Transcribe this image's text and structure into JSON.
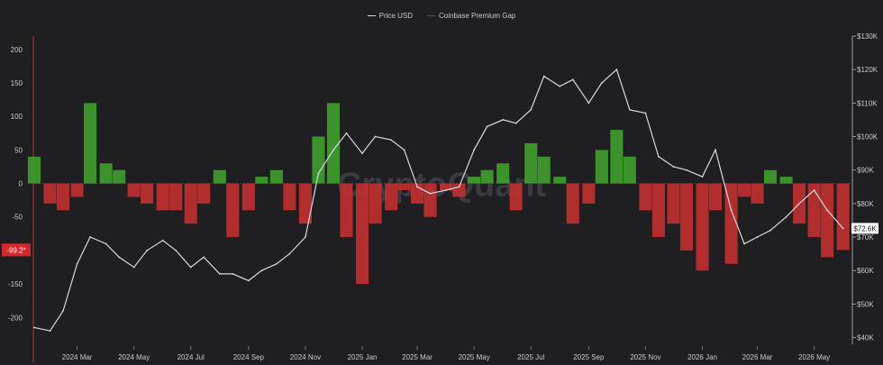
{
  "chart_data": {
    "type": "line",
    "title": "",
    "watermark": "CryptoQuant",
    "legend_position": "top-center",
    "series": [
      {
        "name": "Price USD",
        "axis": "right",
        "color": "#d9d9de",
        "x": [
          "2024-01-15",
          "2024-02-01",
          "2024-02-15",
          "2024-03-01",
          "2024-03-15",
          "2024-04-01",
          "2024-04-15",
          "2024-05-01",
          "2024-05-15",
          "2024-06-01",
          "2024-06-15",
          "2024-07-01",
          "2024-07-15",
          "2024-08-01",
          "2024-08-15",
          "2024-09-01",
          "2024-09-15",
          "2024-10-01",
          "2024-10-15",
          "2024-11-01",
          "2024-11-15",
          "2024-12-01",
          "2024-12-15",
          "2025-01-01",
          "2025-01-15",
          "2025-02-01",
          "2025-02-15",
          "2025-03-01",
          "2025-03-15",
          "2025-04-01",
          "2025-04-15",
          "2025-05-01",
          "2025-05-15",
          "2025-06-01",
          "2025-06-15",
          "2025-07-01",
          "2025-07-15",
          "2025-08-01",
          "2025-08-15",
          "2025-09-01",
          "2025-09-15",
          "2025-10-01",
          "2025-10-15",
          "2025-11-01",
          "2025-11-15",
          "2025-12-01",
          "2025-12-15",
          "2026-01-01",
          "2026-01-15",
          "2026-02-01",
          "2026-02-15",
          "2026-03-01",
          "2026-03-15",
          "2026-04-01",
          "2026-04-15",
          "2026-05-01",
          "2026-05-15",
          "2026-06-01"
        ],
        "values": [
          43000,
          42000,
          48000,
          62000,
          70000,
          68000,
          64000,
          61000,
          66000,
          69000,
          66000,
          61000,
          64000,
          59000,
          59000,
          57000,
          60000,
          62000,
          65000,
          70000,
          89000,
          96000,
          101000,
          95000,
          100000,
          99000,
          96000,
          85000,
          83000,
          84000,
          85000,
          96000,
          103000,
          105000,
          104000,
          108000,
          118000,
          115000,
          117000,
          110000,
          116000,
          120000,
          108000,
          107000,
          94000,
          91000,
          90000,
          88000,
          96000,
          78000,
          68000,
          70000,
          72000,
          76000,
          80000,
          84000,
          78000,
          72600
        ]
      },
      {
        "name": "Coinbase Premium Gap",
        "axis": "left",
        "color_positive": "#3f9e2c",
        "color_negative": "#c23030",
        "x": [
          "2024-01-15",
          "2024-02-01",
          "2024-02-15",
          "2024-03-01",
          "2024-03-15",
          "2024-04-01",
          "2024-04-15",
          "2024-05-01",
          "2024-05-15",
          "2024-06-01",
          "2024-06-15",
          "2024-07-01",
          "2024-07-15",
          "2024-08-01",
          "2024-08-15",
          "2024-09-01",
          "2024-09-15",
          "2024-10-01",
          "2024-10-15",
          "2024-11-01",
          "2024-11-15",
          "2024-12-01",
          "2024-12-15",
          "2025-01-01",
          "2025-01-15",
          "2025-02-01",
          "2025-02-15",
          "2025-03-01",
          "2025-03-15",
          "2025-04-01",
          "2025-04-15",
          "2025-05-01",
          "2025-05-15",
          "2025-06-01",
          "2025-06-15",
          "2025-07-01",
          "2025-07-15",
          "2025-08-01",
          "2025-08-15",
          "2025-09-01",
          "2025-09-15",
          "2025-10-01",
          "2025-10-15",
          "2025-11-01",
          "2025-11-15",
          "2025-12-01",
          "2025-12-15",
          "2026-01-01",
          "2026-01-15",
          "2026-02-01",
          "2026-02-15",
          "2026-03-01",
          "2026-03-15",
          "2026-04-01",
          "2026-04-15",
          "2026-05-01",
          "2026-05-15",
          "2026-06-01"
        ],
        "values": [
          40,
          -30,
          -40,
          -20,
          120,
          30,
          20,
          -20,
          -30,
          -40,
          -40,
          -60,
          -30,
          20,
          -80,
          -40,
          10,
          20,
          -40,
          -60,
          70,
          120,
          -80,
          -150,
          -60,
          -40,
          -10,
          -30,
          -50,
          -10,
          -20,
          10,
          20,
          30,
          -40,
          60,
          40,
          10,
          -60,
          -30,
          50,
          80,
          40,
          -40,
          -80,
          -60,
          -100,
          -130,
          -40,
          -120,
          -20,
          -30,
          20,
          10,
          -60,
          -80,
          -110,
          -99.2
        ]
      }
    ],
    "ylim_left": [
      -240,
      220
    ],
    "yticks_left": [
      -200,
      -150,
      -100,
      -50,
      0,
      50,
      100,
      150,
      200
    ],
    "ylim_right": [
      38000,
      130000
    ],
    "yticks_right": [
      "$40K",
      "$50K",
      "$60K",
      "$70K",
      "$80K",
      "$90K",
      "$100K",
      "$110K",
      "$120K",
      "$130K"
    ],
    "yticks_right_values": [
      40000,
      50000,
      60000,
      70000,
      80000,
      90000,
      100000,
      110000,
      120000,
      130000
    ],
    "xticks": [
      "2024 Mar",
      "2024 May",
      "2024 Jul",
      "2024 Sep",
      "2024 Nov",
      "2025 Jan",
      "2025 Mar",
      "2025 May",
      "2025 Jul",
      "2025 Sep",
      "2025 Nov",
      "2026 Jan",
      "2026 Mar",
      "2026 May"
    ],
    "xticks_dates": [
      "2024-03-01",
      "2024-05-01",
      "2024-07-01",
      "2024-09-01",
      "2024-11-01",
      "2025-01-01",
      "2025-03-01",
      "2025-05-01",
      "2025-07-01",
      "2025-09-01",
      "2025-11-01",
      "2026-01-01",
      "2026-03-01",
      "2026-05-01"
    ],
    "xlim": [
      "2024-01-15",
      "2026-06-10"
    ],
    "current_left_label": "-99.2*",
    "current_left_value": -99.2,
    "current_right_label": "$72.6K",
    "current_right_value": 72600,
    "grid": false,
    "colors": {
      "background": "#1f1f22",
      "price": "#d9d9de",
      "legend_gap": "#3b3bd6",
      "axis_left": "#c23030",
      "label_left_bg": "#d7272b",
      "label_right_bg": "#ffffff"
    }
  }
}
